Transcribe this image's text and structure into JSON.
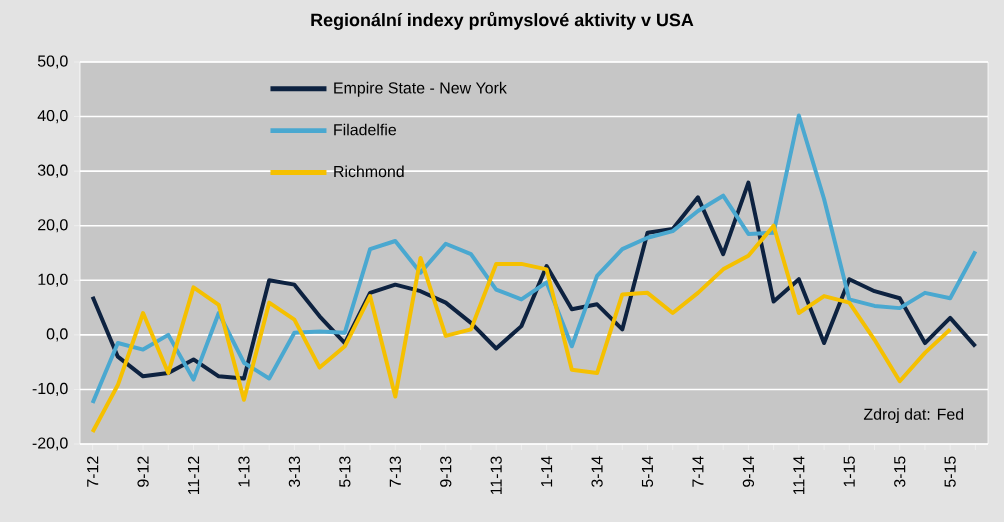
{
  "chart_data": {
    "type": "line",
    "title": "Regionální indexy průmyslové aktivity v USA",
    "categories": [
      "7-12",
      null,
      "9-12",
      null,
      "11-12",
      null,
      "1-13",
      null,
      "3-13",
      null,
      "5-13",
      null,
      "7-13",
      null,
      "9-13",
      null,
      "11-13",
      null,
      "1-14",
      null,
      "3-14",
      null,
      "5-14",
      null,
      "7-14",
      null,
      "9-14",
      null,
      "11-14",
      null,
      "1-15",
      null,
      "3-15",
      null,
      "5-15",
      null
    ],
    "series": [
      {
        "name": "Empire State - New York",
        "color": "#0d2240",
        "values": [
          7,
          -4,
          -7.6,
          -7,
          -4.5,
          -7.6,
          -8,
          10,
          9.2,
          3.4,
          -1.5,
          7.7,
          9.2,
          8,
          5.9,
          2.2,
          -2.5,
          1.6,
          12.6,
          4.7,
          5.6,
          1,
          18.7,
          19.4,
          25.2,
          14.8,
          27.9,
          6.1,
          10.2,
          -1.5,
          10.2,
          8,
          6.7,
          -1.5,
          3.1,
          -2.1
        ]
      },
      {
        "name": "Filadelfie",
        "color": "#4aa8d0",
        "values": [
          -12.5,
          -1.5,
          -2.7,
          0,
          -8.2,
          4,
          -5.1,
          -8,
          0.4,
          0.6,
          0.4,
          15.7,
          17.2,
          11.4,
          16.7,
          14.8,
          8.3,
          6.5,
          9.6,
          -2.1,
          10.8,
          15.7,
          17.8,
          19,
          22.7,
          25.5,
          18.5,
          18.7,
          40.2,
          24.9,
          6.5,
          5.3,
          4.9,
          7.7,
          6.7,
          15.3
        ]
      },
      {
        "name": "Richmond",
        "color": "#f5c000",
        "values": [
          -17.8,
          -9.2,
          4,
          -7,
          8.7,
          5.5,
          -11.9,
          5.9,
          2.8,
          -6,
          -2.1,
          7.1,
          -11.3,
          14.1,
          -0.2,
          1,
          13,
          13,
          12,
          -6.4,
          -7,
          7.4,
          7.7,
          4,
          7.7,
          12,
          14.5,
          20,
          4,
          7.1,
          5.9,
          -0.9,
          -8.5,
          -3.3,
          1,
          null
        ]
      }
    ],
    "ylim": [
      -20,
      50
    ],
    "yticks": [
      {
        "value": -20,
        "label": "-20,0"
      },
      {
        "value": -10,
        "label": "-10,0"
      },
      {
        "value": 0,
        "label": "0,0"
      },
      {
        "value": 10,
        "label": "10,0"
      },
      {
        "value": 20,
        "label": "20,0"
      },
      {
        "value": 30,
        "label": "30,0"
      },
      {
        "value": 40,
        "label": "40,0"
      },
      {
        "value": 50,
        "label": "50,0"
      }
    ],
    "grid": "y",
    "legend": "top left",
    "marker": "none",
    "line_style": "solid",
    "annotations": [
      "Zdroj dat: Fed"
    ]
  }
}
